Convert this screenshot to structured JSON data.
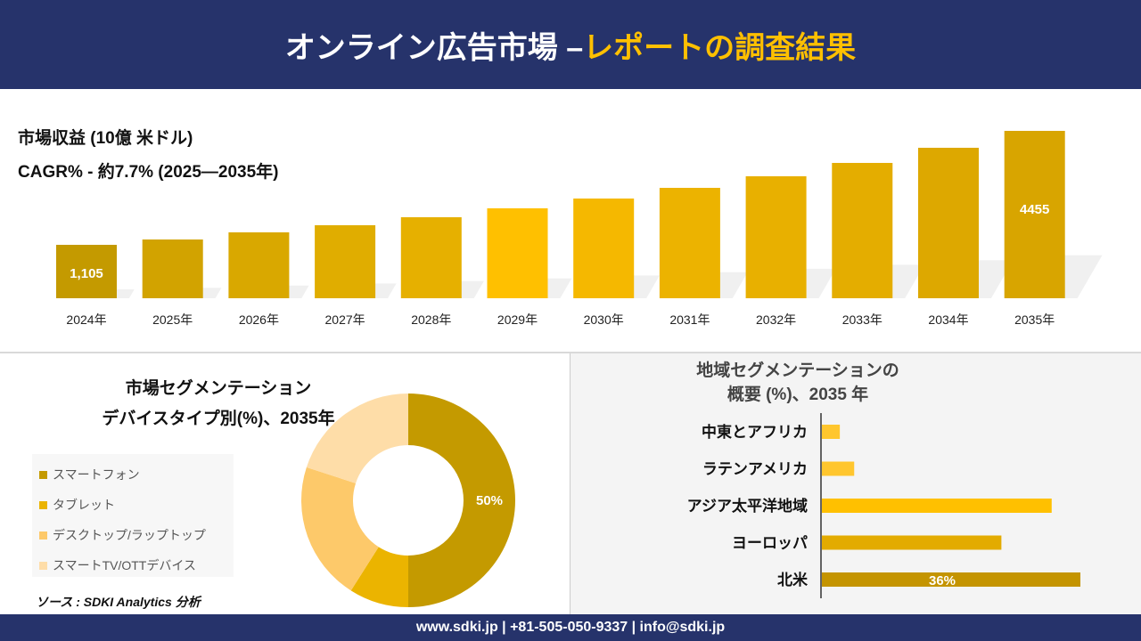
{
  "header": {
    "title_main": "オンライン広告市場 –",
    "title_accent": "レポートの調査結果"
  },
  "revenue": {
    "title": "市場収益 (10億 米ドル)",
    "cagr": "CAGR% - 約7.7% (2025—2035年)"
  },
  "chart_data": [
    {
      "type": "bar",
      "categories": [
        "2024年",
        "2025年",
        "2026年",
        "2027年",
        "2028年",
        "2029年",
        "2030年",
        "2031年",
        "2032年",
        "2033年",
        "2034年",
        "2035年"
      ],
      "values": [
        1105,
        1262,
        1472,
        1681,
        1916,
        2178,
        2466,
        2780,
        3120,
        3513,
        3958,
        4455
      ],
      "data_labels": {
        "2024年": "1,105",
        "2035年": "4455"
      },
      "colors": [
        "#c49a00",
        "#d2a300",
        "#d9a800",
        "#e0ad00",
        "#e6b000",
        "#ffc000",
        "#f5b800",
        "#ecb300",
        "#e8b000",
        "#e4ad00",
        "#dda800",
        "#d8a500"
      ]
    },
    {
      "type": "pie",
      "title": "市場セグメンテーション デバイスタイプ別(%)、2035年",
      "labels": [
        "スマートフォン",
        "タブレット",
        "デスクトップ/ラップトップ",
        "スマートTV/OTTデバイス"
      ],
      "values": [
        50,
        9,
        21,
        20
      ],
      "data_labels": [
        "50%",
        "",
        "",
        ""
      ],
      "colors": [
        "#c49a00",
        "#ebb400",
        "#fdc96a",
        "#fedda8"
      ]
    },
    {
      "type": "bar",
      "orientation": "horizontal",
      "title": "地域セグメンテーションの 概要 (%)、2035 年",
      "categories": [
        "中東とアフリカ",
        "ラテンアメリカ",
        "アジア太平洋地域",
        "ヨーロッパ",
        "北米"
      ],
      "values": [
        2.5,
        4.5,
        32,
        25,
        36
      ],
      "data_labels": [
        "",
        "",
        "",
        "",
        "36%"
      ],
      "colors": [
        "#ffc62e",
        "#ffc62e",
        "#ffc000",
        "#e3ab00",
        "#c49400"
      ]
    }
  ],
  "segment": {
    "title_line1": "市場セグメンテーション",
    "title_line2": "デバイスタイプ別(%)、2035年"
  },
  "region": {
    "title_line1": "地域セグメンテーションの",
    "title_line2": "概要 (%)、2035 年"
  },
  "source": "ソース : SDKI Analytics 分析",
  "footer": "www.sdki.jp | +81-505-050-9337 | info@sdki.jp"
}
